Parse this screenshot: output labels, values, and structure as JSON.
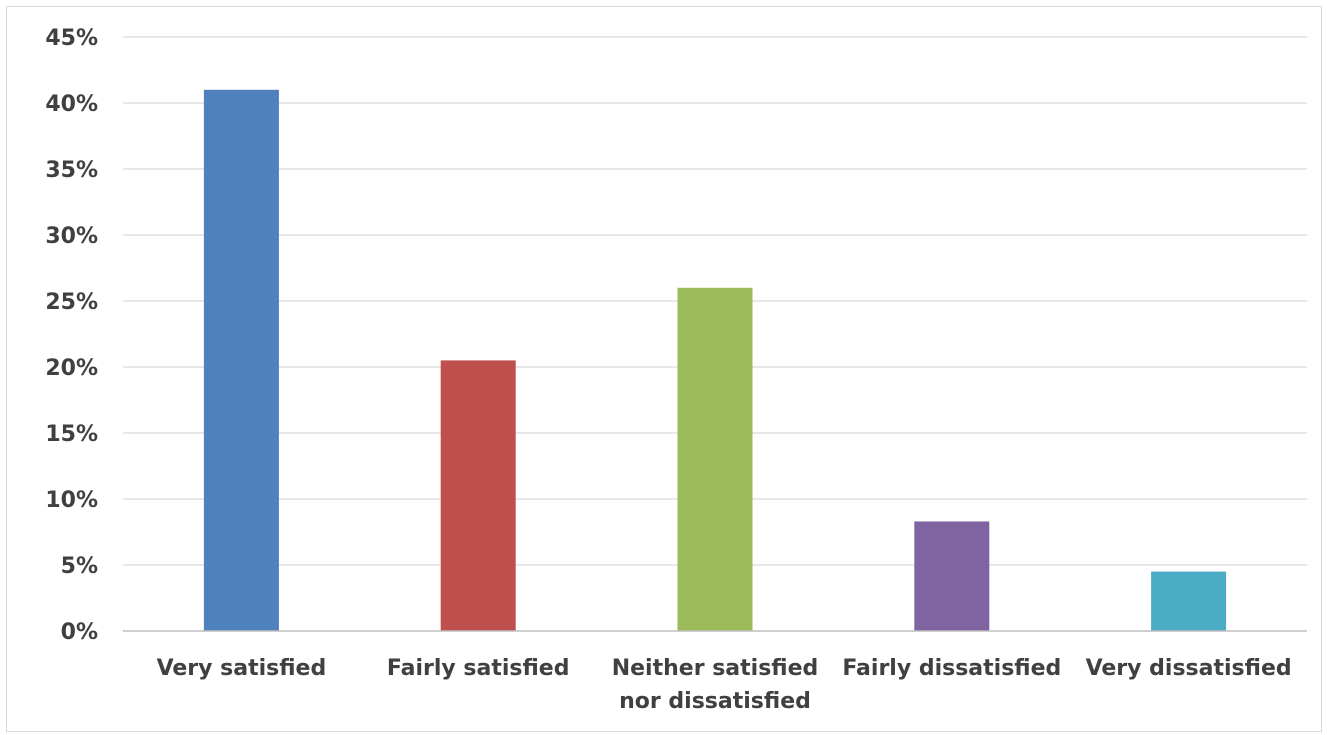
{
  "chart_data": {
    "type": "bar",
    "title": "",
    "xlabel": "",
    "ylabel": "",
    "categories": [
      [
        "Very satisfied"
      ],
      [
        "Fairly satisfied"
      ],
      [
        "Neither satisfied",
        "nor dissatisfied"
      ],
      [
        "Fairly dissatisfied"
      ],
      [
        "Very dissatisfied"
      ]
    ],
    "values": [
      41,
      20.5,
      26,
      8.3,
      4.5
    ],
    "colors": [
      "#4f81bd",
      "#c0504d",
      "#9bbb59",
      "#8064a2",
      "#4bacc6"
    ],
    "ylim": [
      0,
      45
    ],
    "yticks": [
      0,
      5,
      10,
      15,
      20,
      25,
      30,
      35,
      40,
      45
    ],
    "ytick_labels": [
      "0%",
      "5%",
      "10%",
      "15%",
      "20%",
      "25%",
      "30%",
      "35%",
      "40%",
      "45%"
    ],
    "grid": true,
    "legend": "none"
  }
}
